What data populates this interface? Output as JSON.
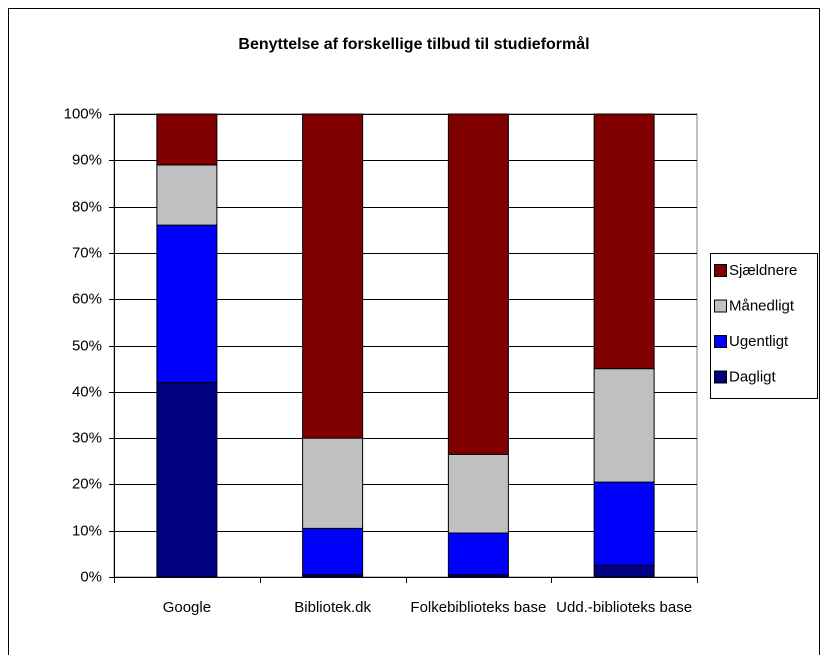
{
  "chart_data": {
    "type": "stacked_bar",
    "title": "Benyttelse af forskellige tilbud til studieformål",
    "categories": [
      "Google",
      "Bibliotek.dk",
      "Folkebiblioteks base",
      "Udd.-biblioteks base"
    ],
    "series": [
      {
        "name": "Dagligt",
        "color": "#000080",
        "values": [
          42,
          0.5,
          0.5,
          2.5
        ]
      },
      {
        "name": "Ugentligt",
        "color": "#0000ff",
        "values": [
          34,
          10,
          9,
          18
        ]
      },
      {
        "name": "Månedligt",
        "color": "#c0c0c0",
        "values": [
          13,
          19.5,
          17,
          24.5
        ]
      },
      {
        "name": "Sjældnere",
        "color": "#800000",
        "values": [
          11,
          70,
          73.5,
          55
        ]
      }
    ],
    "ylim": [
      0,
      100
    ],
    "yticks": [
      {
        "value": 0,
        "label": "0%"
      },
      {
        "value": 10,
        "label": "10%"
      },
      {
        "value": 20,
        "label": "20%"
      },
      {
        "value": 30,
        "label": "30%"
      },
      {
        "value": 40,
        "label": "40%"
      },
      {
        "value": 50,
        "label": "50%"
      },
      {
        "value": 60,
        "label": "60%"
      },
      {
        "value": 70,
        "label": "70%"
      },
      {
        "value": 80,
        "label": "80%"
      },
      {
        "value": 90,
        "label": "90%"
      },
      {
        "value": 100,
        "label": "100%"
      }
    ],
    "grid": true,
    "legend": "right"
  }
}
